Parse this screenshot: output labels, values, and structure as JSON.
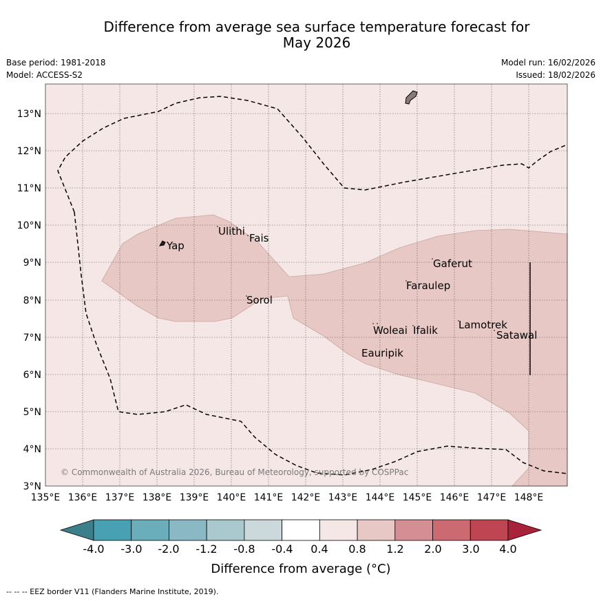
{
  "title": {
    "line1": "Difference from average sea surface temperature forecast for",
    "line2": "May 2026"
  },
  "meta": {
    "base_period": "Base period: 1981-2018",
    "model": "Model: ACCESS-S2",
    "model_run": "Model run: 16/02/2026",
    "issued": "Issued: 18/02/2026"
  },
  "map": {
    "lon_labels": [
      "135°E",
      "136°E",
      "137°E",
      "138°E",
      "139°E",
      "140°E",
      "141°E",
      "142°E",
      "143°E",
      "144°E",
      "145°E",
      "146°E",
      "147°E",
      "148°E"
    ],
    "lat_labels": [
      "13°N",
      "12°N",
      "11°N",
      "10°N",
      "9°N",
      "8°N",
      "7°N",
      "6°N",
      "5°N",
      "4°N",
      "3°N"
    ],
    "places": [
      {
        "name": "Yap"
      },
      {
        "name": "Ulithi"
      },
      {
        "name": "Fais"
      },
      {
        "name": "Sorol"
      },
      {
        "name": "Gaferut"
      },
      {
        "name": "Faraulep"
      },
      {
        "name": "Woleai"
      },
      {
        "name": "Ifalik"
      },
      {
        "name": "Lamotrek"
      },
      {
        "name": "Satawal"
      },
      {
        "name": "Eauripik"
      }
    ],
    "copyright": "© Commonwealth of Australia 2026, Bureau of Meteorology, supported by COSPPac",
    "colors": {
      "bg_class": "#f4e7e6",
      "warm_class": "#e7c8c4"
    }
  },
  "colorbar": {
    "ticks": [
      "-4.0",
      "-3.0",
      "-2.0",
      "-1.2",
      "-0.8",
      "-0.4",
      "0.4",
      "0.8",
      "1.2",
      "2.0",
      "3.0",
      "4.0"
    ],
    "colors": [
      "#3b7f8a",
      "#48a1b2",
      "#6aadbb",
      "#8ab8c4",
      "#a9c9cf",
      "#cbd8dc",
      "#ffffff",
      "#f4e7e6",
      "#e7c8c4",
      "#d68e95",
      "#cc6a72",
      "#c04553",
      "#a82339"
    ],
    "label": "Difference from average (°C)"
  },
  "footer": "--  --  -- EEZ border V11 (Flanders Marine Institute, 2019)."
}
